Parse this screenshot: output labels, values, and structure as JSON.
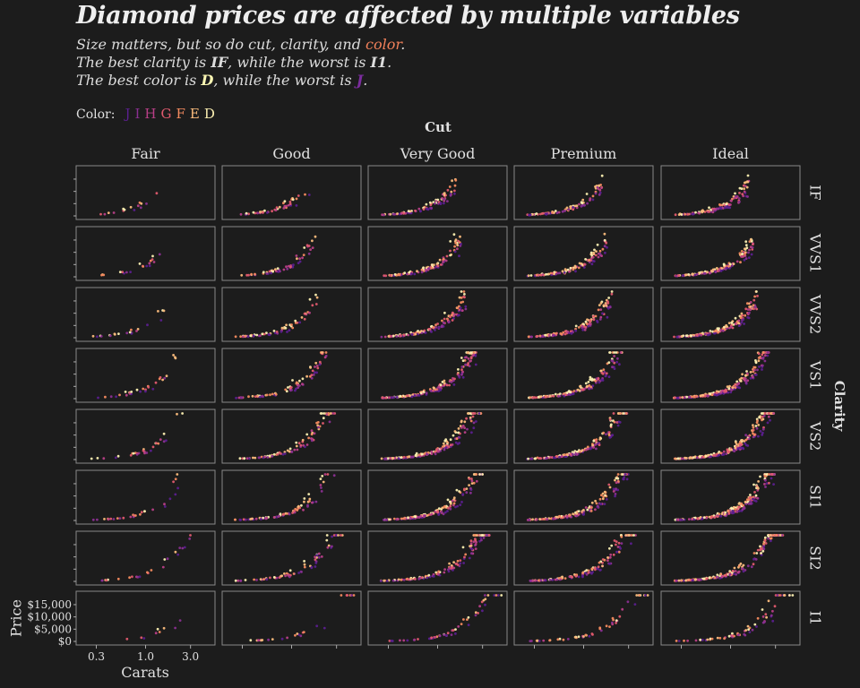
{
  "title": "Diamond prices are affected by multiple variables",
  "subtitle": {
    "line1": {
      "a": "Size matters, but so do cut, clarity, and ",
      "b": "color",
      "c": "."
    },
    "line2": {
      "a": "The best clarity is ",
      "b": "IF",
      "c": ", while the worst is ",
      "d": "I1",
      "e": "."
    },
    "line3": {
      "a": "The best color is ",
      "b": "D",
      "c": ", while the worst is ",
      "d": "J",
      "e": "."
    }
  },
  "colors": {
    "background": "#1c1c1c",
    "panel_border": "#888888",
    "highlight_color_word": "#f0805a",
    "best_color": "#fcf7b4",
    "worst_color": "#6a1f8a"
  },
  "legend": {
    "label": "Color:",
    "items": [
      {
        "key": "J",
        "color": "#5b1f8e"
      },
      {
        "key": "I",
        "color": "#8a2f91"
      },
      {
        "key": "H",
        "color": "#b83f87"
      },
      {
        "key": "G",
        "color": "#e05a6e"
      },
      {
        "key": "F",
        "color": "#f48b5f"
      },
      {
        "key": "E",
        "color": "#fbbc7c"
      },
      {
        "key": "D",
        "color": "#fcf0b2"
      }
    ]
  },
  "chart_data": {
    "type": "scatter",
    "x_scale": "log10",
    "col_facet_title": "Cut",
    "row_facet_title": "Clarity",
    "cut_levels": [
      "Fair",
      "Good",
      "Very Good",
      "Premium",
      "Ideal"
    ],
    "clarity_levels": [
      "IF",
      "VVS1",
      "VVS2",
      "VS1",
      "VS2",
      "SI1",
      "SI2",
      "I1"
    ],
    "xlabel": "Carats",
    "ylabel": "Price",
    "x_ticks": [
      "0.3",
      "1.0",
      "3.0"
    ],
    "x_tick_values": [
      0.3,
      1.0,
      3.0
    ],
    "y_ticks": [
      "$0",
      "$5,000",
      "$10,000",
      "$15,000"
    ],
    "y_tick_values": [
      0,
      5000,
      10000,
      15000
    ],
    "xlim": [
      0.2,
      5.0
    ],
    "ylim": [
      0,
      19000
    ],
    "grid": false,
    "legend_position": "top-left",
    "price_trend": "price ≈ 4000 × carat^1.8"
  }
}
